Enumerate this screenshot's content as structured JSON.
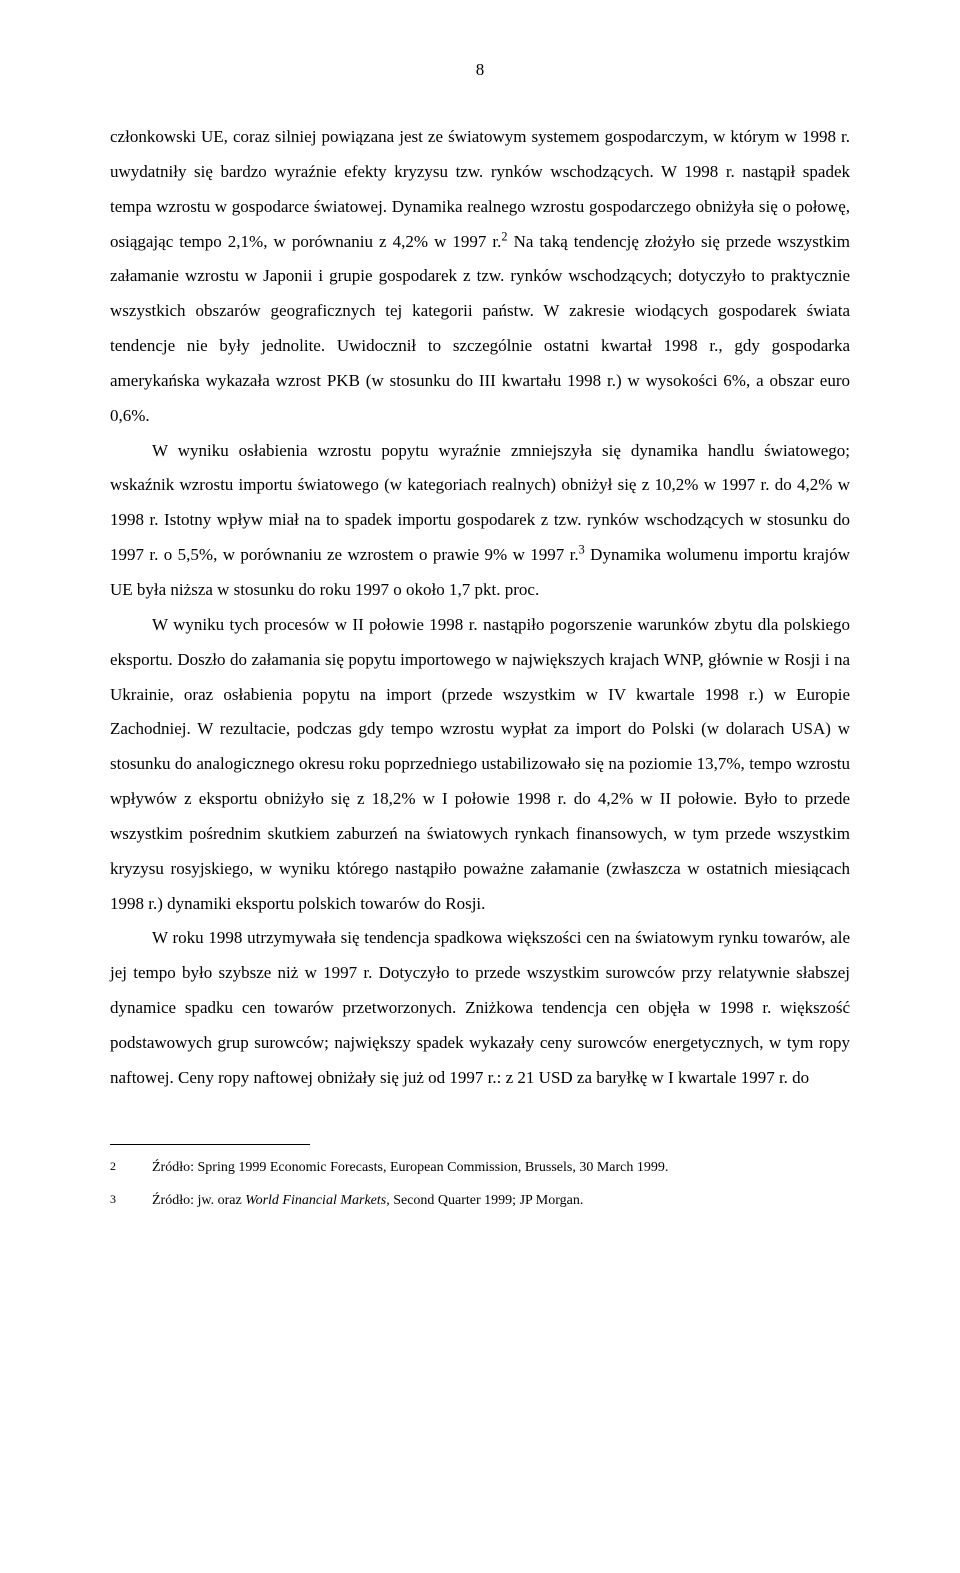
{
  "page_number": "8",
  "paragraphs": {
    "p1": "członkowski UE, coraz silniej powiązana jest ze światowym systemem gospodarczym, w którym w 1998 r. uwydatniły się bardzo wyraźnie efekty kryzysu tzw. rynków wschodzących. W 1998 r. nastąpił spadek tempa wzrostu w gospodarce światowej. Dynamika realnego wzrostu gospodarczego obniżyła się o połowę, osiągając tempo 2,1%, w porównaniu z 4,2% w 1997 r.",
    "p1_after_sup": " Na taką tendencję złożyło się przede wszystkim załamanie wzrostu w Japonii i grupie gospodarek z tzw. rynków wschodzących; dotyczyło to praktycznie wszystkich obszarów geograficznych tej kategorii państw. W zakresie wiodących gospodarek świata tendencje nie były jednolite. Uwidocznił to szczególnie ostatni kwartał 1998 r., gdy gospodarka amerykańska wykazała wzrost PKB (w stosunku do III kwartału 1998 r.) w wysokości  6%, a obszar euro 0,6%.",
    "p2": "W wyniku osłabienia wzrostu popytu wyraźnie zmniejszyła się dynamika handlu światowego; wskaźnik wzrostu importu światowego (w kategoriach realnych) obniżył się z 10,2% w 1997 r. do 4,2% w 1998 r. Istotny wpływ miał na to spadek importu gospodarek  z tzw. rynków wschodzących w stosunku do 1997 r. o 5,5%, w porównaniu ze wzrostem o prawie 9% w 1997 r.",
    "p2_after_sup": " Dynamika wolumenu importu krajów UE była niższa w stosunku do roku 1997 o około 1,7 pkt. proc.",
    "p3": "W wyniku tych procesów w II połowie 1998 r. nastąpiło pogorszenie warunków zbytu dla polskiego eksportu. Doszło do załamania się popytu importowego w największych krajach WNP, głównie w Rosji i na Ukrainie, oraz osłabienia popytu na import (przede wszystkim w IV kwartale 1998 r.) w Europie Zachodniej. W rezultacie, podczas gdy tempo wzrostu wypłat za import do Polski (w dolarach USA) w stosunku do analogicznego okresu roku poprzedniego ustabilizowało się na poziomie 13,7%, tempo wzrostu wpływów z eksportu obniżyło się z 18,2% w I połowie 1998 r. do 4,2% w II połowie. Było to przede wszystkim pośrednim skutkiem zaburzeń na światowych rynkach finansowych, w tym przede wszystkim kryzysu rosyjskiego, w wyniku którego nastąpiło poważne załamanie (zwłaszcza w ostatnich miesiącach 1998 r.) dynamiki eksportu polskich towarów do Rosji.",
    "p4": "W roku 1998 utrzymywała się tendencja spadkowa większości cen na światowym rynku towarów, ale jej tempo było szybsze niż w 1997 r. Dotyczyło to przede wszystkim surowców przy relatywnie słabszej dynamice spadku cen towarów przetworzonych. Zniżkowa tendencja cen objęła w 1998 r. większość podstawowych grup surowców; największy spadek wykazały ceny surowców energetycznych, w tym ropy naftowej. Ceny ropy naftowej obniżały się już od 1997 r.: z 21 USD za baryłkę w I kwartale 1997 r. do"
  },
  "superscripts": {
    "s1": "2",
    "s2": "3"
  },
  "footnotes": {
    "fn1_num": "2",
    "fn1_text": "Źródło: Spring 1999 Economic Forecasts, European Commission, Brussels,  30 March 1999.",
    "fn2_num": "3",
    "fn2_text_a": "Źródło: jw. oraz ",
    "fn2_text_italic": "World Financial Markets",
    "fn2_text_b": ", Second Quarter 1999; JP Morgan."
  }
}
